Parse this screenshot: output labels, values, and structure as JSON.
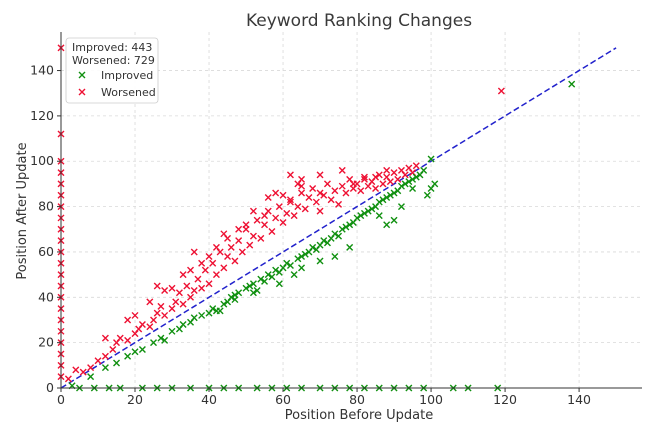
{
  "chart_data": {
    "type": "scatter",
    "title": "Keyword Ranking Changes",
    "xlabel": "Position Before Update",
    "ylabel": "Position After Update",
    "xlim": [
      0,
      157
    ],
    "ylim": [
      0,
      157
    ],
    "xticks": [
      0,
      20,
      40,
      60,
      80,
      100,
      120,
      140
    ],
    "yticks": [
      0,
      20,
      40,
      60,
      80,
      100,
      120,
      140
    ],
    "grid": true,
    "legend": {
      "placement": "top-left",
      "stats": [
        "Improved: 443",
        "Worsened: 729"
      ],
      "entries": [
        "Improved",
        "Worsened"
      ]
    },
    "reference_line": {
      "from": [
        0,
        0
      ],
      "to": [
        150,
        150
      ],
      "color": "#2222cc",
      "style": "dashed"
    },
    "colors": {
      "improved": "#109010",
      "worsened": "#ee1133"
    },
    "series": [
      {
        "name": "Improved",
        "marker": "x",
        "color": "#109010",
        "points": [
          [
            3,
            1
          ],
          [
            8,
            5
          ],
          [
            12,
            9
          ],
          [
            15,
            11
          ],
          [
            18,
            14
          ],
          [
            20,
            16
          ],
          [
            22,
            17
          ],
          [
            25,
            20
          ],
          [
            27,
            22
          ],
          [
            28,
            21
          ],
          [
            30,
            25
          ],
          [
            32,
            26
          ],
          [
            33,
            28
          ],
          [
            35,
            29
          ],
          [
            36,
            31
          ],
          [
            38,
            32
          ],
          [
            40,
            33
          ],
          [
            41,
            35
          ],
          [
            42,
            34
          ],
          [
            44,
            37
          ],
          [
            45,
            38
          ],
          [
            46,
            40
          ],
          [
            47,
            41
          ],
          [
            48,
            42
          ],
          [
            50,
            44
          ],
          [
            51,
            45
          ],
          [
            52,
            46
          ],
          [
            53,
            43
          ],
          [
            54,
            48
          ],
          [
            55,
            47
          ],
          [
            56,
            50
          ],
          [
            57,
            49
          ],
          [
            58,
            52
          ],
          [
            59,
            51
          ],
          [
            60,
            53
          ],
          [
            61,
            55
          ],
          [
            62,
            54
          ],
          [
            63,
            50
          ],
          [
            64,
            57
          ],
          [
            65,
            58
          ],
          [
            66,
            59
          ],
          [
            67,
            60
          ],
          [
            68,
            62
          ],
          [
            69,
            61
          ],
          [
            70,
            63
          ],
          [
            71,
            65
          ],
          [
            72,
            64
          ],
          [
            73,
            66
          ],
          [
            74,
            68
          ],
          [
            75,
            67
          ],
          [
            76,
            70
          ],
          [
            77,
            71
          ],
          [
            78,
            72
          ],
          [
            79,
            73
          ],
          [
            80,
            75
          ],
          [
            81,
            76
          ],
          [
            82,
            77
          ],
          [
            83,
            78
          ],
          [
            84,
            79
          ],
          [
            85,
            80
          ],
          [
            86,
            82
          ],
          [
            87,
            83
          ],
          [
            88,
            84
          ],
          [
            89,
            85
          ],
          [
            90,
            86
          ],
          [
            91,
            87
          ],
          [
            92,
            89
          ],
          [
            93,
            90
          ],
          [
            94,
            91
          ],
          [
            95,
            92
          ],
          [
            96,
            93
          ],
          [
            97,
            94
          ],
          [
            98,
            96
          ],
          [
            100,
            101
          ],
          [
            100,
            88
          ],
          [
            101,
            90
          ],
          [
            99,
            85
          ],
          [
            95,
            88
          ],
          [
            92,
            80
          ],
          [
            90,
            74
          ],
          [
            88,
            72
          ],
          [
            86,
            76
          ],
          [
            78,
            62
          ],
          [
            74,
            58
          ],
          [
            70,
            56
          ],
          [
            65,
            53
          ],
          [
            59,
            46
          ],
          [
            52,
            42
          ],
          [
            47,
            39
          ],
          [
            43,
            34
          ],
          [
            138,
            134
          ],
          [
            5,
            0
          ],
          [
            9,
            0
          ],
          [
            13,
            0
          ],
          [
            16,
            0
          ],
          [
            22,
            0
          ],
          [
            26,
            0
          ],
          [
            30,
            0
          ],
          [
            35,
            0
          ],
          [
            40,
            0
          ],
          [
            44,
            0
          ],
          [
            48,
            0
          ],
          [
            53,
            0
          ],
          [
            57,
            0
          ],
          [
            61,
            0
          ],
          [
            65,
            0
          ],
          [
            70,
            0
          ],
          [
            74,
            0
          ],
          [
            78,
            0
          ],
          [
            82,
            0
          ],
          [
            86,
            0
          ],
          [
            90,
            0
          ],
          [
            94,
            0
          ],
          [
            98,
            0
          ],
          [
            106,
            0
          ],
          [
            110,
            0
          ],
          [
            118,
            0
          ]
        ]
      },
      {
        "name": "Worsened",
        "marker": "x",
        "color": "#ee1133",
        "points": [
          [
            0,
            150
          ],
          [
            0,
            112
          ],
          [
            0,
            100
          ],
          [
            0,
            95
          ],
          [
            0,
            90
          ],
          [
            0,
            85
          ],
          [
            0,
            80
          ],
          [
            0,
            75
          ],
          [
            0,
            70
          ],
          [
            0,
            65
          ],
          [
            0,
            60
          ],
          [
            0,
            55
          ],
          [
            0,
            50
          ],
          [
            0,
            45
          ],
          [
            0,
            40
          ],
          [
            0,
            35
          ],
          [
            0,
            30
          ],
          [
            0,
            25
          ],
          [
            0,
            20
          ],
          [
            0,
            15
          ],
          [
            0,
            10
          ],
          [
            0,
            5
          ],
          [
            119,
            131
          ],
          [
            88,
            96
          ],
          [
            85,
            93
          ],
          [
            82,
            92
          ],
          [
            79,
            90
          ],
          [
            70,
            86
          ],
          [
            62,
            82
          ],
          [
            56,
            84
          ],
          [
            62,
            94
          ],
          [
            65,
            89
          ],
          [
            2,
            4
          ],
          [
            4,
            8
          ],
          [
            6,
            7
          ],
          [
            8,
            9
          ],
          [
            10,
            12
          ],
          [
            12,
            14
          ],
          [
            14,
            17
          ],
          [
            15,
            20
          ],
          [
            16,
            22
          ],
          [
            18,
            21
          ],
          [
            20,
            24
          ],
          [
            21,
            26
          ],
          [
            22,
            28
          ],
          [
            24,
            27
          ],
          [
            25,
            30
          ],
          [
            26,
            33
          ],
          [
            27,
            36
          ],
          [
            28,
            32
          ],
          [
            30,
            35
          ],
          [
            31,
            38
          ],
          [
            32,
            42
          ],
          [
            33,
            37
          ],
          [
            34,
            45
          ],
          [
            35,
            40
          ],
          [
            36,
            43
          ],
          [
            37,
            48
          ],
          [
            38,
            44
          ],
          [
            39,
            52
          ],
          [
            40,
            46
          ],
          [
            41,
            55
          ],
          [
            42,
            50
          ],
          [
            43,
            60
          ],
          [
            44,
            53
          ],
          [
            45,
            58
          ],
          [
            46,
            62
          ],
          [
            47,
            56
          ],
          [
            48,
            65
          ],
          [
            49,
            60
          ],
          [
            50,
            70
          ],
          [
            51,
            63
          ],
          [
            52,
            67
          ],
          [
            53,
            74
          ],
          [
            54,
            66
          ],
          [
            55,
            72
          ],
          [
            56,
            78
          ],
          [
            57,
            69
          ],
          [
            58,
            75
          ],
          [
            59,
            80
          ],
          [
            60,
            73
          ],
          [
            61,
            77
          ],
          [
            62,
            83
          ],
          [
            63,
            76
          ],
          [
            64,
            80
          ],
          [
            65,
            86
          ],
          [
            66,
            79
          ],
          [
            67,
            84
          ],
          [
            68,
            88
          ],
          [
            69,
            82
          ],
          [
            70,
            78
          ],
          [
            71,
            85
          ],
          [
            72,
            90
          ],
          [
            73,
            83
          ],
          [
            74,
            87
          ],
          [
            75,
            81
          ],
          [
            76,
            89
          ],
          [
            77,
            86
          ],
          [
            78,
            92
          ],
          [
            79,
            88
          ],
          [
            80,
            90
          ],
          [
            81,
            87
          ],
          [
            82,
            93
          ],
          [
            83,
            89
          ],
          [
            84,
            91
          ],
          [
            85,
            88
          ],
          [
            86,
            94
          ],
          [
            87,
            90
          ],
          [
            88,
            93
          ],
          [
            89,
            91
          ],
          [
            90,
            95
          ],
          [
            91,
            92
          ],
          [
            92,
            96
          ],
          [
            93,
            94
          ],
          [
            94,
            97
          ],
          [
            95,
            95
          ],
          [
            96,
            98
          ],
          [
            30,
            44
          ],
          [
            35,
            52
          ],
          [
            40,
            58
          ],
          [
            45,
            66
          ],
          [
            50,
            72
          ],
          [
            55,
            76
          ],
          [
            60,
            85
          ],
          [
            65,
            92
          ],
          [
            42,
            62
          ],
          [
            48,
            70
          ],
          [
            38,
            55
          ],
          [
            33,
            50
          ],
          [
            28,
            43
          ],
          [
            24,
            38
          ],
          [
            20,
            32
          ],
          [
            58,
            86
          ],
          [
            64,
            90
          ],
          [
            70,
            94
          ],
          [
            76,
            96
          ],
          [
            44,
            68
          ],
          [
            52,
            78
          ],
          [
            36,
            60
          ],
          [
            26,
            45
          ],
          [
            18,
            30
          ],
          [
            12,
            22
          ]
        ]
      }
    ]
  }
}
